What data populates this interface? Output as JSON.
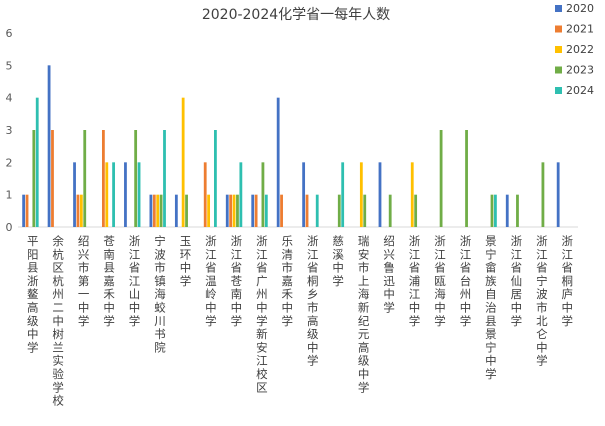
{
  "chart_data": {
    "type": "bar",
    "title": "2020-2024化学省一每年人数",
    "xlabel": "",
    "ylabel": "",
    "ylim": [
      0,
      6
    ],
    "yticks": [
      0,
      1,
      2,
      3,
      4,
      5,
      6
    ],
    "grid": false,
    "legend_position": "right",
    "categories": [
      "平阳县浙鳌高级中学",
      "余杭区杭州二中树兰实验学校",
      "绍兴市第一中学",
      "苍南县嘉禾中学",
      "浙江省江山中学",
      "宁波市镇海蛟川书院",
      "玉环中学",
      "浙江省温岭中学",
      "浙江省苍南中学",
      "浙江省广州中学新安江校区",
      "乐清市嘉禾中学",
      "浙江省桐乡市高级中学",
      "慈溪中学",
      "瑞安市上海新纪元高级中学",
      "绍兴鲁迅中学",
      "浙江省浦江中学",
      "浙江省瓯海中学",
      "浙江省台州中学",
      "景宁畲族自治县景宁中学",
      "浙江省仙居中学",
      "浙江省宁波市北仑中学",
      "浙江省桐庐中学"
    ],
    "series": [
      {
        "name": "2020",
        "color": "#4472c4",
        "values": [
          1,
          5,
          2,
          0,
          2,
          1,
          1,
          0,
          1,
          1,
          4,
          2,
          0,
          0,
          2,
          0,
          0,
          0,
          0,
          1,
          0,
          2
        ]
      },
      {
        "name": "2021",
        "color": "#ed7d31",
        "values": [
          1,
          3,
          1,
          3,
          0,
          1,
          0,
          2,
          1,
          1,
          1,
          1,
          0,
          0,
          0,
          0,
          0,
          0,
          0,
          0,
          0,
          0
        ]
      },
      {
        "name": "2022",
        "color": "#ffc000",
        "values": [
          0,
          0,
          1,
          2,
          0,
          1,
          4,
          1,
          1,
          0,
          0,
          0,
          0,
          2,
          0,
          2,
          0,
          0,
          0,
          0,
          0,
          0
        ]
      },
      {
        "name": "2023",
        "color": "#70ad47",
        "values": [
          3,
          0,
          3,
          0,
          3,
          1,
          1,
          0,
          1,
          2,
          0,
          0,
          1,
          1,
          1,
          1,
          3,
          3,
          1,
          1,
          2,
          0
        ]
      },
      {
        "name": "2024",
        "color": "#2ebfb0",
        "values": [
          4,
          0,
          0,
          2,
          2,
          3,
          0,
          3,
          2,
          1,
          0,
          1,
          2,
          0,
          0,
          0,
          0,
          0,
          1,
          0,
          0,
          0
        ]
      }
    ]
  }
}
